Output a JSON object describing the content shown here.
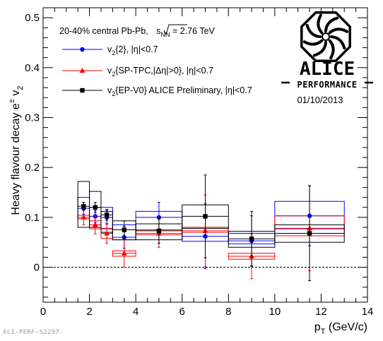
{
  "chart_data": {
    "type": "scatter",
    "title": "",
    "xlabel": "p",
    "xlabel_sub": "T",
    "xlabel_unit": " (GeV/c)",
    "ylabel": "Heavy flavour decay e",
    "ylabel_sup": "±",
    "ylabel_tail": " v",
    "ylabel_sub": "2",
    "xlim": [
      0,
      14
    ],
    "ylim": [
      -0.07,
      0.52
    ],
    "xticks": [
      0,
      2,
      4,
      6,
      8,
      10,
      12,
      14
    ],
    "yticks": [
      0,
      0.1,
      0.2,
      0.3,
      0.4,
      0.5
    ],
    "ytick_labels": [
      "0",
      "0.1",
      "0.2",
      "0.3",
      "0.4",
      "0.5"
    ],
    "zero_line": "dashed",
    "grid": false,
    "legend_position": "top-left",
    "header": {
      "prefix": "20-40% central Pb-Pb, ",
      "sqrt_s": "s",
      "sqrt_sub": "NN",
      "energy": " = 2.76 TeV"
    },
    "series": [
      {
        "legend": {
          "a": "v",
          "sub": "2",
          "b": "{2}, |η|<0.7"
        },
        "color": "#0000ff",
        "marker": "circle",
        "points": [
          {
            "x": 1.75,
            "y": 0.118,
            "err": 0.012,
            "sys_lo": 0.097,
            "sys_hi": 0.14,
            "xl": 1.5,
            "xr": 2.0
          },
          {
            "x": 2.25,
            "y": 0.102,
            "err": 0.012,
            "sys_lo": 0.085,
            "sys_hi": 0.12,
            "xl": 2.0,
            "xr": 2.5
          },
          {
            "x": 2.75,
            "y": 0.1,
            "err": 0.014,
            "sys_lo": 0.077,
            "sys_hi": 0.12,
            "xl": 2.5,
            "xr": 3.0
          },
          {
            "x": 3.5,
            "y": 0.06,
            "err": 0.022,
            "sys_lo": 0.055,
            "sys_hi": 0.085,
            "xl": 3.0,
            "xr": 4.0
          },
          {
            "x": 5.0,
            "y": 0.1,
            "err": 0.03,
            "sys_lo": 0.075,
            "sys_hi": 0.112,
            "xl": 4.0,
            "xr": 6.0
          },
          {
            "x": 7.0,
            "y": 0.062,
            "err": 0.065,
            "sys_lo": 0.052,
            "sys_hi": 0.08,
            "xl": 6.0,
            "xr": 8.0
          },
          {
            "x": 9.0,
            "y": 0.053,
            "err": 0.05,
            "sys_lo": 0.047,
            "sys_hi": 0.068,
            "xl": 8.0,
            "xr": 10.0
          },
          {
            "x": 11.5,
            "y": 0.103,
            "err": 0.06,
            "sys_lo": 0.077,
            "sys_hi": 0.132,
            "xl": 10.0,
            "xr": 13.0
          }
        ]
      },
      {
        "legend": {
          "a": "v",
          "sub": "2",
          "b": "{SP-TPC,|Δη|>0},  |η|<0.7"
        },
        "color": "#ff0000",
        "marker": "triangle",
        "points": [
          {
            "x": 1.75,
            "y": 0.1,
            "err": 0.015,
            "sys_lo": 0.097,
            "sys_hi": 0.104,
            "xl": 1.5,
            "xr": 2.0
          },
          {
            "x": 2.25,
            "y": 0.085,
            "err": 0.018,
            "sys_lo": 0.077,
            "sys_hi": 0.093,
            "xl": 2.0,
            "xr": 2.5
          },
          {
            "x": 2.75,
            "y": 0.068,
            "err": 0.02,
            "sys_lo": 0.058,
            "sys_hi": 0.078,
            "xl": 2.5,
            "xr": 3.0
          },
          {
            "x": 3.5,
            "y": 0.028,
            "err": 0.028,
            "sys_lo": 0.022,
            "sys_hi": 0.033,
            "xl": 3.0,
            "xr": 4.0
          },
          {
            "x": 5.0,
            "y": 0.068,
            "err": 0.028,
            "sys_lo": 0.065,
            "sys_hi": 0.075,
            "xl": 4.0,
            "xr": 6.0
          },
          {
            "x": 7.0,
            "y": 0.073,
            "err": 0.072,
            "sys_lo": 0.07,
            "sys_hi": 0.08,
            "xl": 6.0,
            "xr": 8.0
          },
          {
            "x": 9.0,
            "y": 0.022,
            "err": 0.045,
            "sys_lo": 0.016,
            "sys_hi": 0.028,
            "xl": 8.0,
            "xr": 10.0
          },
          {
            "x": 11.5,
            "y": 0.078,
            "err": 0.085,
            "sys_lo": 0.063,
            "sys_hi": 0.103,
            "xl": 10.0,
            "xr": 13.0
          }
        ]
      },
      {
        "legend": {
          "a": "v",
          "sub": "2",
          "b": "{EP-V0} ALICE Preliminary, |η|<0.7"
        },
        "color": "#000000",
        "marker": "square",
        "points": [
          {
            "x": 1.75,
            "y": 0.122,
            "err": 0.008,
            "sys_lo": 0.08,
            "sys_hi": 0.172,
            "xl": 1.5,
            "xr": 2.0
          },
          {
            "x": 2.25,
            "y": 0.12,
            "err": 0.01,
            "sys_lo": 0.08,
            "sys_hi": 0.152,
            "xl": 2.0,
            "xr": 2.5
          },
          {
            "x": 2.75,
            "y": 0.105,
            "err": 0.011,
            "sys_lo": 0.07,
            "sys_hi": 0.112,
            "xl": 2.5,
            "xr": 3.0
          },
          {
            "x": 3.5,
            "y": 0.075,
            "err": 0.018,
            "sys_lo": 0.055,
            "sys_hi": 0.093,
            "xl": 3.0,
            "xr": 4.0
          },
          {
            "x": 5.0,
            "y": 0.073,
            "err": 0.025,
            "sys_lo": 0.055,
            "sys_hi": 0.087,
            "xl": 4.0,
            "xr": 6.0
          },
          {
            "x": 7.0,
            "y": 0.102,
            "err": 0.083,
            "sys_lo": 0.078,
            "sys_hi": 0.125,
            "xl": 6.0,
            "xr": 8.0
          },
          {
            "x": 9.0,
            "y": 0.057,
            "err": 0.055,
            "sys_lo": 0.04,
            "sys_hi": 0.072,
            "xl": 8.0,
            "xr": 10.0
          },
          {
            "x": 11.5,
            "y": 0.068,
            "err": 0.095,
            "sys_lo": 0.05,
            "sys_hi": 0.085,
            "xl": 10.0,
            "xr": 13.0
          }
        ]
      }
    ]
  },
  "logo": {
    "name": "ALICE",
    "subtitle": "PERFORMANCE",
    "date": "01/10/2013"
  },
  "watermark": "ALI-PERF-52297"
}
